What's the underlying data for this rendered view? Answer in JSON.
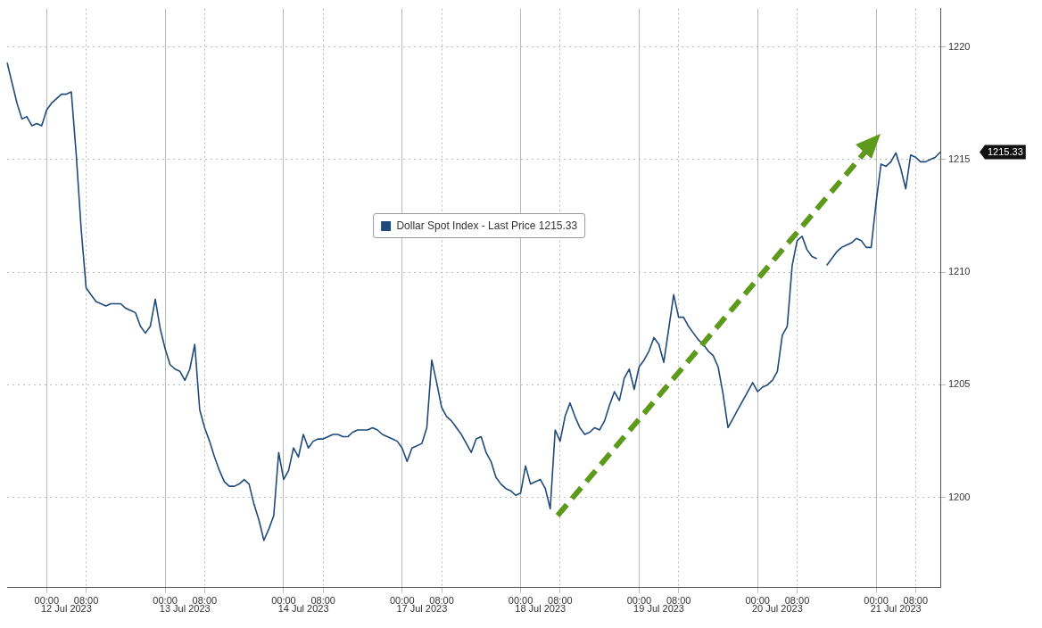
{
  "chart_data": {
    "type": "line",
    "categories": [
      null,
      null,
      null,
      null,
      null,
      null,
      null,
      null,
      "00:00",
      null,
      null,
      null,
      null,
      null,
      null,
      null,
      "08:00",
      null,
      null,
      null,
      null,
      null,
      null,
      null,
      null,
      null,
      null,
      null,
      null,
      null,
      null,
      null,
      "00:00",
      null,
      null,
      null,
      null,
      null,
      null,
      null,
      "08:00",
      null,
      null,
      null,
      null,
      null,
      null,
      null,
      null,
      null,
      null,
      null,
      null,
      null,
      null,
      null,
      "00:00",
      null,
      null,
      null,
      null,
      null,
      null,
      null,
      "08:00",
      null,
      null,
      null,
      null,
      null,
      null,
      null,
      null,
      null,
      null,
      null,
      null,
      null,
      null,
      null,
      "00:00",
      null,
      null,
      null,
      null,
      null,
      null,
      null,
      "08:00",
      null,
      null,
      null,
      null,
      null,
      null,
      null,
      null,
      null,
      null,
      null,
      null,
      null,
      null,
      null,
      "00:00",
      null,
      null,
      null,
      null,
      null,
      null,
      null,
      "08:00",
      null,
      null,
      null,
      null,
      null,
      null,
      null,
      null,
      null,
      null,
      null,
      null,
      null,
      null,
      null,
      "00:00",
      null,
      null,
      null,
      null,
      null,
      null,
      null,
      "08:00",
      null,
      null,
      null,
      null,
      null,
      null,
      null,
      null,
      null,
      null,
      null,
      null,
      null,
      null,
      null,
      "00:00",
      null,
      null,
      null,
      null,
      null,
      null,
      null,
      "08:00",
      null,
      null,
      null,
      null,
      null,
      null,
      null,
      null,
      null,
      null,
      null,
      null,
      null,
      null,
      null,
      "00:00",
      null,
      null,
      null,
      null,
      null,
      null,
      null,
      "08:00",
      null,
      null,
      null,
      null,
      null
    ],
    "series": [
      {
        "name": "Dollar Spot Index - Last Price 1215.33",
        "color": "#1f4a7a",
        "values": [
          1219.3,
          1218.4,
          1217.5,
          1216.8,
          1216.9,
          1216.5,
          1216.6,
          1216.5,
          1217.2,
          1217.5,
          1217.7,
          1217.9,
          1217.9,
          1218.0,
          1215.2,
          1211.9,
          1209.3,
          1209.0,
          1208.7,
          1208.6,
          1208.5,
          1208.6,
          1208.6,
          1208.6,
          1208.4,
          1208.3,
          1208.2,
          1207.6,
          1207.3,
          1207.6,
          1208.8,
          1207.5,
          1206.6,
          1205.9,
          1205.7,
          1205.6,
          1205.2,
          1205.7,
          1206.8,
          1203.9,
          1203.1,
          1202.5,
          1201.8,
          1201.2,
          1200.7,
          1200.5,
          1200.5,
          1200.6,
          1200.8,
          1200.6,
          1199.7,
          1199.0,
          1198.1,
          1198.6,
          1199.2,
          1202.0,
          1200.8,
          1201.2,
          1202.2,
          1201.8,
          1202.8,
          1202.2,
          1202.5,
          1202.6,
          1202.6,
          1202.7,
          1202.8,
          1202.8,
          1202.7,
          1202.7,
          1202.9,
          1203.0,
          1203.0,
          1203.0,
          1203.1,
          1203.0,
          1202.8,
          1202.7,
          1202.6,
          1202.5,
          1202.2,
          1201.6,
          1202.2,
          1202.3,
          1202.4,
          1203.1,
          1206.1,
          1205.1,
          1204.0,
          1203.6,
          1203.4,
          1203.1,
          1202.8,
          1202.4,
          1202.0,
          1202.6,
          1202.7,
          1202.0,
          1201.6,
          1200.9,
          1200.6,
          1200.4,
          1200.3,
          1200.1,
          1200.2,
          1201.4,
          1200.6,
          1200.7,
          1200.8,
          1200.4,
          1199.5,
          1203.0,
          1202.5,
          1203.6,
          1204.2,
          1203.6,
          1203.1,
          1202.8,
          1202.9,
          1203.1,
          1203.0,
          1203.4,
          1204.1,
          1204.7,
          1204.3,
          1205.3,
          1205.7,
          1204.8,
          1205.8,
          1206.1,
          1206.5,
          1207.1,
          1206.8,
          1206.0,
          1207.5,
          1209.0,
          1208.0,
          1208.0,
          1207.6,
          1207.3,
          1207.0,
          1206.8,
          1206.5,
          1206.3,
          1205.8,
          1204.6,
          1203.1,
          1203.5,
          1203.9,
          1204.3,
          1204.7,
          1205.1,
          1204.7,
          1204.9,
          1205.0,
          1205.2,
          1205.6,
          1207.2,
          1207.6,
          1210.3,
          1211.4,
          1211.6,
          1211.0,
          1210.7,
          1210.6,
          null,
          1210.3,
          1210.6,
          1210.9,
          1211.1,
          1211.2,
          1211.3,
          1211.5,
          1211.4,
          1211.1,
          1211.1,
          1213.1,
          1214.8,
          1214.7,
          1214.9,
          1215.3,
          1214.6,
          1213.7,
          1215.2,
          1215.1,
          1214.9,
          1214.9,
          1215.0,
          1215.1,
          1215.33
        ]
      }
    ],
    "ylim": [
      1196,
      1221.7
    ],
    "yticks": [
      1200,
      1205,
      1210,
      1215,
      1220
    ],
    "grid": true,
    "legend": "top",
    "annotations": [
      "12 Jul 2023",
      "13 Jul 2023",
      "14 Jul 2023",
      "17 Jul 2023",
      "18 Jul 2023",
      "19 Jul 2023",
      "20 Jul 2023",
      "21 Jul 2023",
      "1215.33"
    ]
  }
}
